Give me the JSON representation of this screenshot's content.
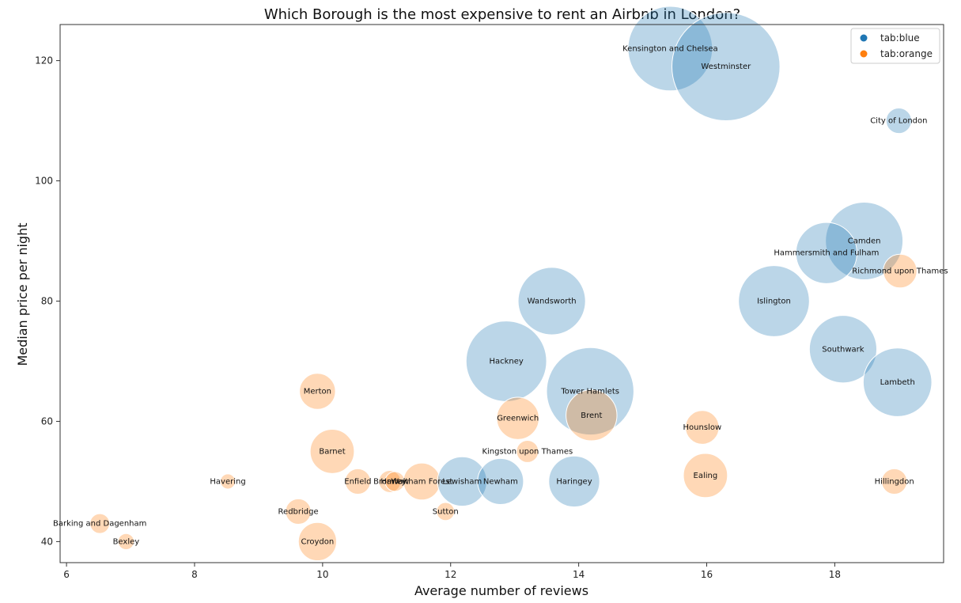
{
  "chart_data": {
    "type": "scatter",
    "title": "Which Borough is the most expensive to rent an Airbnb in London?",
    "xlabel": "Average number of reviews",
    "ylabel": "Median price per night",
    "xlim": [
      5.9,
      19.7
    ],
    "ylim": [
      36.5,
      126
    ],
    "xticks": [
      6,
      8,
      10,
      12,
      14,
      16,
      18
    ],
    "yticks": [
      40,
      60,
      80,
      100,
      120
    ],
    "grid": false,
    "legend": {
      "placement": "top-right",
      "entries": [
        {
          "label": "tab:blue",
          "color": "#1f77b4"
        },
        {
          "label": "tab:orange",
          "color": "#ff7f0e"
        }
      ]
    },
    "colors": {
      "tab:blue": "#1f77b4",
      "tab:orange": "#ff7f0e"
    },
    "points": [
      {
        "label": "Kensington and Chelsea",
        "x": 15.43,
        "y": 122,
        "size": 2.2,
        "group": "tab:blue"
      },
      {
        "label": "Westminster",
        "x": 16.3,
        "y": 119,
        "size": 3.6,
        "group": "tab:blue"
      },
      {
        "label": "City of London",
        "x": 19.0,
        "y": 110,
        "size": 0.2,
        "group": "tab:blue"
      },
      {
        "label": "Camden",
        "x": 18.46,
        "y": 90,
        "size": 1.85,
        "group": "tab:blue"
      },
      {
        "label": "Hammersmith and Fulham",
        "x": 17.87,
        "y": 88,
        "size": 1.15,
        "group": "tab:blue"
      },
      {
        "label": "Richmond upon Thames",
        "x": 19.02,
        "y": 85,
        "size": 0.35,
        "group": "tab:orange"
      },
      {
        "label": "Wandsworth",
        "x": 13.58,
        "y": 80,
        "size": 1.4,
        "group": "tab:blue"
      },
      {
        "label": "Islington",
        "x": 17.05,
        "y": 80,
        "size": 1.55,
        "group": "tab:blue"
      },
      {
        "label": "Southwark",
        "x": 18.13,
        "y": 72,
        "size": 1.4,
        "group": "tab:blue"
      },
      {
        "label": "Hackney",
        "x": 12.87,
        "y": 70,
        "size": 2.0,
        "group": "tab:blue"
      },
      {
        "label": "Lambeth",
        "x": 18.98,
        "y": 66.5,
        "size": 1.45,
        "group": "tab:blue"
      },
      {
        "label": "Tower Hamlets",
        "x": 14.18,
        "y": 65,
        "size": 2.35,
        "group": "tab:blue"
      },
      {
        "label": "Merton",
        "x": 9.92,
        "y": 65,
        "size": 0.4,
        "group": "tab:orange"
      },
      {
        "label": "Brent",
        "x": 14.2,
        "y": 61,
        "size": 0.8,
        "group": "tab:orange"
      },
      {
        "label": "Greenwich",
        "x": 13.05,
        "y": 60.5,
        "size": 0.55,
        "group": "tab:orange"
      },
      {
        "label": "Hounslow",
        "x": 15.93,
        "y": 59,
        "size": 0.35,
        "group": "tab:orange"
      },
      {
        "label": "Kingston upon Thames",
        "x": 13.2,
        "y": 55,
        "size": 0.15,
        "group": "tab:orange"
      },
      {
        "label": "Barnet",
        "x": 10.15,
        "y": 55,
        "size": 0.6,
        "group": "tab:orange"
      },
      {
        "label": "Havering",
        "x": 8.52,
        "y": 50,
        "size": 0.07,
        "group": "tab:orange"
      },
      {
        "label": "Enfield",
        "x": 10.55,
        "y": 50,
        "size": 0.2,
        "group": "tab:orange"
      },
      {
        "label": "Bromley",
        "x": 11.05,
        "y": 50,
        "size": 0.15,
        "group": "tab:orange"
      },
      {
        "label": "Harrow",
        "x": 11.13,
        "y": 50,
        "size": 0.12,
        "group": "tab:orange"
      },
      {
        "label": "Waltham Forest",
        "x": 11.55,
        "y": 50,
        "size": 0.42,
        "group": "tab:orange"
      },
      {
        "label": "Lewisham",
        "x": 12.18,
        "y": 50,
        "size": 0.75,
        "group": "tab:blue"
      },
      {
        "label": "Newham",
        "x": 12.78,
        "y": 50,
        "size": 0.65,
        "group": "tab:blue"
      },
      {
        "label": "Haringey",
        "x": 13.93,
        "y": 50,
        "size": 0.8,
        "group": "tab:blue"
      },
      {
        "label": "Ealing",
        "x": 15.98,
        "y": 51,
        "size": 0.6,
        "group": "tab:orange"
      },
      {
        "label": "Hillingdon",
        "x": 18.93,
        "y": 50,
        "size": 0.2,
        "group": "tab:orange"
      },
      {
        "label": "Redbridge",
        "x": 9.62,
        "y": 45,
        "size": 0.2,
        "group": "tab:orange"
      },
      {
        "label": "Sutton",
        "x": 11.92,
        "y": 45,
        "size": 0.1,
        "group": "tab:orange"
      },
      {
        "label": "Barking and Dagenham",
        "x": 6.52,
        "y": 43,
        "size": 0.12,
        "group": "tab:orange"
      },
      {
        "label": "Bexley",
        "x": 6.93,
        "y": 40,
        "size": 0.08,
        "group": "tab:orange"
      },
      {
        "label": "Croydon",
        "x": 9.92,
        "y": 40,
        "size": 0.45,
        "group": "tab:orange"
      }
    ]
  }
}
